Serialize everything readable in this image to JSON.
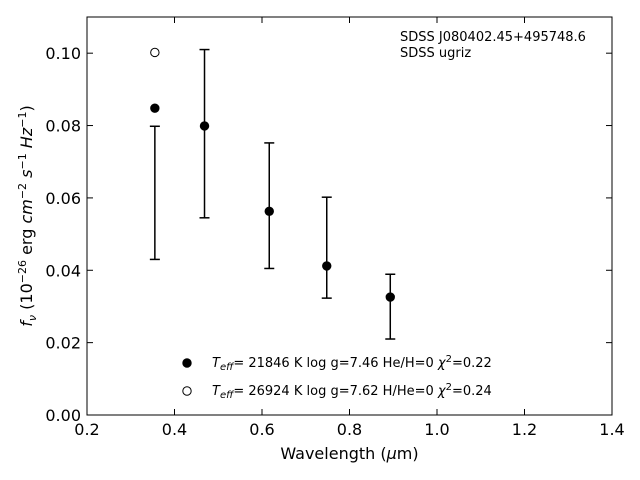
{
  "chart_data": {
    "type": "scatter",
    "annotation_lines": [
      "SDSS J080402.45+495748.6",
      "SDSS ugriz"
    ],
    "xlabel": "Wavelength (μm)",
    "ylabel": "f_ν (10^−26 erg cm^−2 s^−1 Hz^−1)",
    "xlim": [
      0.2,
      1.4
    ],
    "ylim": [
      0.0,
      0.11
    ],
    "x_ticks": [
      0.2,
      0.4,
      0.6,
      0.8,
      1.0,
      1.2,
      1.4
    ],
    "x_tick_labels": [
      "0.2",
      "0.4",
      "0.6",
      "0.8",
      "1.0",
      "1.2",
      "1.4"
    ],
    "y_ticks": [
      0.0,
      0.02,
      0.04,
      0.06,
      0.08,
      0.1
    ],
    "y_tick_labels": [
      "0.00",
      "0.02",
      "0.04",
      "0.06",
      "0.08",
      "0.10"
    ],
    "grid": false,
    "ticks_direction": "in",
    "ticks_on_all_sides": true,
    "observed": {
      "x": [
        0.3551,
        0.4686,
        0.6166,
        0.748,
        0.8932
      ],
      "y_low": [
        0.043,
        0.0545,
        0.0405,
        0.0323,
        0.021
      ],
      "y_high": [
        0.0798,
        0.101,
        0.0752,
        0.0602,
        0.0389
      ]
    },
    "series": [
      {
        "legend_label": "T_eff= 21846 K  log g=7.46  He/H=0  χ²=0.22",
        "marker": "filled-circle",
        "x": [
          0.3551,
          0.4686,
          0.6166,
          0.748,
          0.8932
        ],
        "y": [
          0.0848,
          0.0799,
          0.0563,
          0.0412,
          0.0326
        ]
      },
      {
        "legend_label": "T_eff= 26924 K  log g=7.62  H/He=0  χ²=0.24",
        "marker": "open-circle",
        "x": [
          0.3551
        ],
        "y": [
          0.1002
        ]
      }
    ],
    "legend_location": "lower-center",
    "colors": {
      "marker": "#000000",
      "errorbar": "#000000",
      "background": "#ffffff"
    }
  }
}
